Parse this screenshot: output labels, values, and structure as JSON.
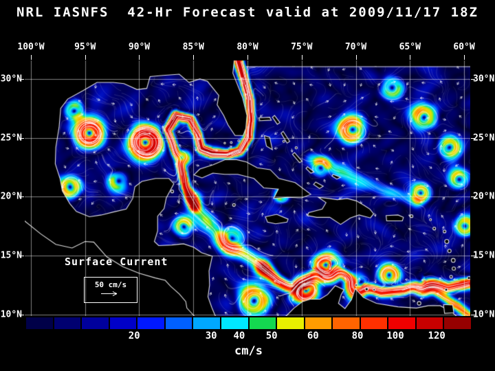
{
  "title": "NRL IASNFS  42-Hr Forecast valid at 2009/11/17 18Z",
  "colors": {
    "background": "#000000",
    "text": "#ffffff"
  },
  "axes": {
    "lon_labels": [
      "100°W",
      "95°W",
      "90°W",
      "85°W",
      "80°W",
      "75°W",
      "70°W",
      "65°W",
      "60°W"
    ],
    "lon_values": [
      -100,
      -95,
      -90,
      -85,
      -80,
      -75,
      -70,
      -65,
      -60
    ],
    "lat_labels": [
      "30°N",
      "25°N",
      "20°N",
      "15°N",
      "10°N"
    ],
    "lat_values": [
      30,
      25,
      20,
      15,
      10
    ]
  },
  "map": {
    "overlay_label": "Surface Current",
    "scale_label": "50 cm/s"
  },
  "colorbar": {
    "unit": "cm/s",
    "tick_labels": [
      "20",
      "30",
      "40",
      "50",
      "60",
      "80",
      "100",
      "120"
    ],
    "tick_positions": [
      0.243,
      0.416,
      0.479,
      0.552,
      0.645,
      0.745,
      0.83,
      0.923
    ],
    "segment_colors": [
      "#000048",
      "#000070",
      "#00009c",
      "#0000c8",
      "#0018ff",
      "#0060ff",
      "#00a8ff",
      "#00e8ff",
      "#14d850",
      "#e8f000",
      "#ff9c00",
      "#ff6400",
      "#ff3000",
      "#f00000",
      "#c80000",
      "#960000"
    ]
  },
  "chart_data": {
    "type": "heatmap",
    "title": "NRL IASNFS 42-Hr Forecast valid at 2009/11/17 18Z",
    "variable": "Surface Current speed",
    "unit": "cm/s",
    "overlay": "current direction vectors and streamlines (white)",
    "region": "Intra-Americas Sea: Gulf of Mexico, Caribbean Sea, western North Atlantic",
    "x_axis": {
      "label": "Longitude",
      "tick_labels": [
        "100°W",
        "95°W",
        "90°W",
        "85°W",
        "80°W",
        "75°W",
        "70°W",
        "65°W",
        "60°W"
      ],
      "range": [
        -100.6,
        -59.4
      ]
    },
    "y_axis": {
      "label": "Latitude",
      "tick_labels": [
        "30°N",
        "25°N",
        "20°N",
        "15°N",
        "10°N"
      ],
      "range": [
        9.9,
        31.6
      ]
    },
    "grid": true,
    "colorbar_scale_cm_per_s": [
      20,
      30,
      40,
      50,
      60,
      80,
      100,
      120
    ],
    "reference_vector_cm_per_s": 50,
    "notable_features": [
      "Loop Current and warm-core rings in the Gulf of Mexico exceeding 100 cm/s",
      "Florida Current / Gulf Stream ribbon exiting the Straits of Florida northward near 80°W",
      "Strong meandering Caribbean Current with paired eddies near 70-76°W, 11-15°N",
      "Mostly weak (<20 cm/s) mottled background flow over the open Atlantic"
    ]
  }
}
